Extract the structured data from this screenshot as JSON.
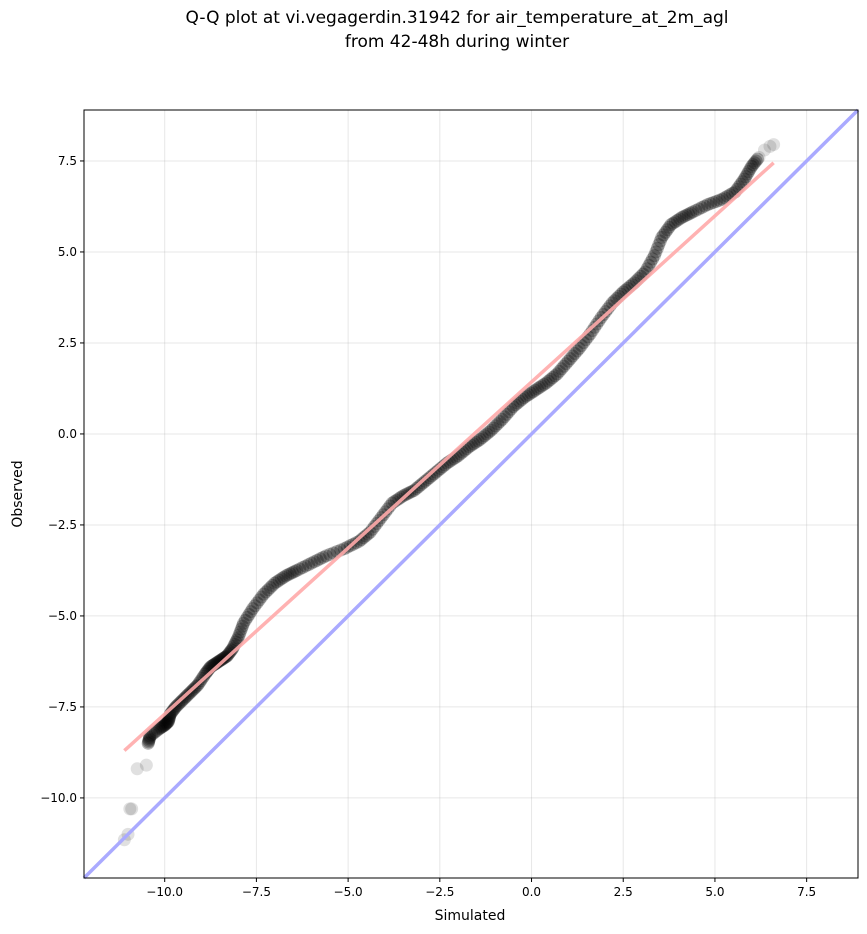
{
  "chart_data": {
    "type": "scatter",
    "title": "Q-Q plot at vi.vegagerdin.31942 for air_temperature_at_2m_agl",
    "subtitle": "from 42-48h during winter",
    "xlabel": "Simulated",
    "ylabel": "Observed",
    "xlim": [
      -12.2,
      8.9
    ],
    "ylim": [
      -12.2,
      8.9
    ],
    "x_ticks": [
      "−10.0",
      "−7.5",
      "−5.0",
      "−2.5",
      "0.0",
      "2.5",
      "5.0",
      "7.5"
    ],
    "y_ticks": [
      "−10.0",
      "−7.5",
      "−5.0",
      "−2.5",
      "0.0",
      "2.5",
      "5.0",
      "7.5"
    ],
    "grid": true,
    "identity_line": {
      "color": "#aaaaff",
      "from": [
        -12.2,
        -12.2
      ],
      "to": [
        8.9,
        8.9
      ]
    },
    "fit_line": {
      "color": "#ffaaaa",
      "from": [
        -11.1,
        -8.7
      ],
      "to": [
        6.6,
        7.45
      ]
    },
    "series": [
      {
        "color": "#000000",
        "points": [
          [
            -11.1,
            -11.15
          ],
          [
            -11.0,
            -11.0
          ],
          [
            -10.95,
            -10.3
          ],
          [
            -10.9,
            -10.3
          ],
          [
            -10.75,
            -9.2
          ],
          [
            -10.5,
            -9.1
          ],
          [
            -10.45,
            -8.5
          ],
          [
            -10.4,
            -8.3
          ],
          [
            -10.15,
            -8.1
          ],
          [
            -10.0,
            -8.0
          ],
          [
            -9.9,
            -7.9
          ],
          [
            -9.85,
            -7.7
          ],
          [
            -9.7,
            -7.5
          ],
          [
            -9.5,
            -7.3
          ],
          [
            -9.3,
            -7.1
          ],
          [
            -9.1,
            -6.9
          ],
          [
            -8.9,
            -6.6
          ],
          [
            -8.75,
            -6.4
          ],
          [
            -8.6,
            -6.3
          ],
          [
            -8.45,
            -6.2
          ],
          [
            -8.3,
            -6.1
          ],
          [
            -8.15,
            -5.9
          ],
          [
            -8.0,
            -5.6
          ],
          [
            -7.85,
            -5.2
          ],
          [
            -7.6,
            -4.8
          ],
          [
            -7.3,
            -4.4
          ],
          [
            -7.0,
            -4.1
          ],
          [
            -6.7,
            -3.9
          ],
          [
            -6.4,
            -3.75
          ],
          [
            -6.0,
            -3.55
          ],
          [
            -5.6,
            -3.35
          ],
          [
            -5.1,
            -3.15
          ],
          [
            -4.7,
            -2.95
          ],
          [
            -4.4,
            -2.7
          ],
          [
            -4.1,
            -2.3
          ],
          [
            -3.8,
            -1.9
          ],
          [
            -3.5,
            -1.7
          ],
          [
            -3.2,
            -1.55
          ],
          [
            -2.9,
            -1.3
          ],
          [
            -2.6,
            -1.05
          ],
          [
            -2.3,
            -0.8
          ],
          [
            -2.0,
            -0.6
          ],
          [
            -1.7,
            -0.35
          ],
          [
            -1.4,
            -0.15
          ],
          [
            -1.1,
            0.1
          ],
          [
            -0.8,
            0.4
          ],
          [
            -0.5,
            0.75
          ],
          [
            -0.2,
            1.0
          ],
          [
            0.1,
            1.2
          ],
          [
            0.4,
            1.4
          ],
          [
            0.7,
            1.65
          ],
          [
            1.0,
            2.0
          ],
          [
            1.3,
            2.35
          ],
          [
            1.6,
            2.75
          ],
          [
            1.9,
            3.2
          ],
          [
            2.2,
            3.6
          ],
          [
            2.5,
            3.9
          ],
          [
            2.8,
            4.15
          ],
          [
            3.1,
            4.45
          ],
          [
            3.35,
            4.9
          ],
          [
            3.55,
            5.4
          ],
          [
            3.8,
            5.75
          ],
          [
            4.1,
            5.95
          ],
          [
            4.4,
            6.1
          ],
          [
            4.8,
            6.3
          ],
          [
            5.2,
            6.45
          ],
          [
            5.55,
            6.65
          ],
          [
            5.8,
            7.0
          ],
          [
            6.0,
            7.35
          ],
          [
            6.2,
            7.6
          ],
          [
            6.35,
            7.8
          ],
          [
            6.5,
            7.9
          ],
          [
            6.6,
            7.95
          ]
        ]
      }
    ]
  }
}
